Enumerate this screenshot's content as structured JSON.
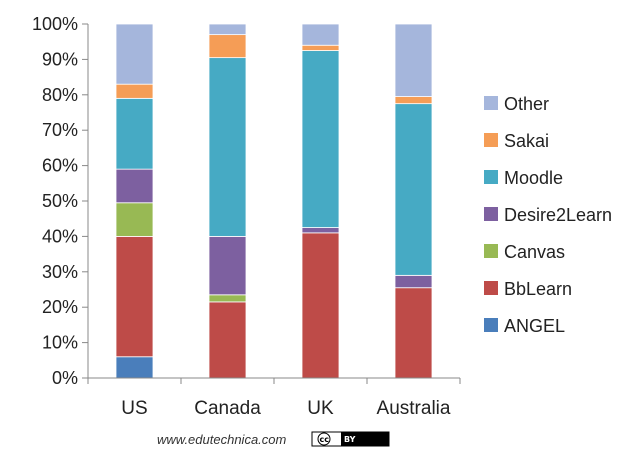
{
  "chart_data": {
    "type": "bar",
    "stacked": true,
    "percent": true,
    "categories": [
      "US",
      "Canada",
      "UK",
      "Australia"
    ],
    "ylim": [
      0,
      100
    ],
    "yticks": [
      0,
      10,
      20,
      30,
      40,
      50,
      60,
      70,
      80,
      90,
      100
    ],
    "ytick_suffix": "%",
    "legend_position": "right",
    "grid": false,
    "series": [
      {
        "name": "ANGEL",
        "color": "#4a7ebb",
        "values": [
          6,
          0,
          0,
          0
        ]
      },
      {
        "name": "BbLearn",
        "color": "#be4b48",
        "values": [
          34,
          21.5,
          41,
          25.5
        ]
      },
      {
        "name": "Canvas",
        "color": "#98b954",
        "values": [
          9.5,
          2,
          0,
          0
        ]
      },
      {
        "name": "Desire2Learn",
        "color": "#7d60a0",
        "values": [
          9.5,
          16.5,
          1.5,
          3.5
        ]
      },
      {
        "name": "Moodle",
        "color": "#46aac4",
        "values": [
          20,
          50.5,
          50,
          48.5
        ]
      },
      {
        "name": "Sakai",
        "color": "#f59d56",
        "values": [
          4,
          6.5,
          1.5,
          2
        ]
      },
      {
        "name": "Other",
        "color": "#a5b6dc",
        "values": [
          17,
          3,
          6,
          20.5
        ]
      }
    ]
  },
  "credit": {
    "site": "www.edutechnica.com",
    "license": "BY"
  }
}
